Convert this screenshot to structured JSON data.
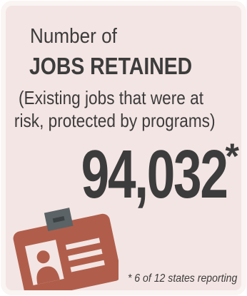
{
  "heading": {
    "line1": "Number of",
    "line2": "JOBS RETAINED"
  },
  "description": {
    "line1": "(Existing jobs that  were at",
    "line2": "risk, protected by programs)"
  },
  "metric": {
    "value": "94,032",
    "asterisk": "*"
  },
  "footnote": "* 6 of 12 states reporting",
  "icon": "id-badge-icon",
  "colors": {
    "card_background": "#f3e5e3",
    "card_border": "#faf4f3",
    "text": "#3c3c3c",
    "badge": "#b05e4b",
    "badge_clip": "#5b6366"
  }
}
